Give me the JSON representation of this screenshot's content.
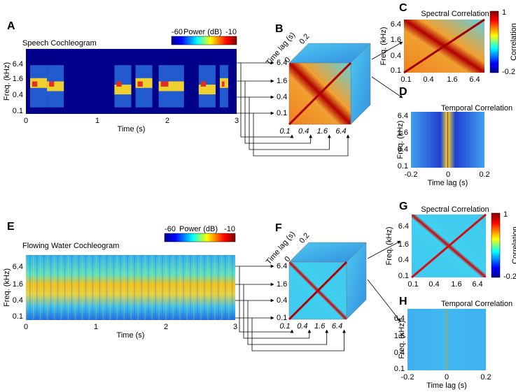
{
  "panels": [
    {
      "letter": "A",
      "title": "Speech Cochleogram",
      "colorbar": {
        "label": "Power (dB)",
        "min": "-60",
        "max": "-10"
      },
      "y_label": "Freq. (kHz)",
      "y_ticks": [
        "6.4",
        "1.6",
        "0.4",
        "0.1"
      ],
      "x_label": "Time (s)",
      "x_ticks": [
        "0",
        "1",
        "2",
        "3"
      ]
    },
    {
      "letter": "B",
      "lag_label": "Time lag (s)",
      "lag_ticks": [
        "0",
        "0.2"
      ],
      "row_ticks": [
        "6.4",
        "1.6",
        "0.4",
        "0.1"
      ],
      "col_ticks": [
        "0.1",
        "0.4",
        "1.6",
        "6.4"
      ]
    },
    {
      "letter": "C",
      "title": "Spectral Correlation",
      "colorbar": {
        "label": "Correlation",
        "max": "1",
        "min": "-0.2"
      },
      "y_label": "Freq. (kHz)",
      "y_ticks": [
        "6.4",
        "1.6",
        "0.4",
        "0.1"
      ],
      "x_ticks": [
        "0.1",
        "0.4",
        "1.6",
        "6.4"
      ]
    },
    {
      "letter": "D",
      "title": "Temporal Correlation",
      "y_label": "Freq. (kHz)",
      "y_ticks": [
        "6.4",
        "1.6",
        "0.4",
        "0.1"
      ],
      "x_label": "Time lag (s)",
      "x_ticks": [
        "-0.2",
        "0",
        "0.2"
      ]
    },
    {
      "letter": "E",
      "title": "Flowing Water Cochleogram",
      "colorbar": {
        "label": "Power (dB)",
        "min": "-60",
        "max": "-10"
      },
      "y_label": "Freq. (kHz)",
      "y_ticks": [
        "6.4",
        "1.6",
        "0.4",
        "0.1"
      ],
      "x_label": "Time (s)",
      "x_ticks": [
        "0",
        "1",
        "2",
        "3"
      ]
    },
    {
      "letter": "F",
      "lag_label": "Time lag (s)",
      "lag_ticks": [
        "0",
        "0.2"
      ],
      "row_ticks": [
        "6.4",
        "1.6",
        "0.4",
        "0.1"
      ],
      "col_ticks": [
        "0.1",
        "0.4",
        "1.6",
        "6.4"
      ]
    },
    {
      "letter": "G",
      "title": "Spectral Correlation",
      "colorbar": {
        "label": "Correlation",
        "max": "1",
        "min": "-0.2"
      },
      "y_label": "Freq. (kHz)",
      "y_ticks": [
        "6.4",
        "1.6",
        "0.4",
        "0.1"
      ],
      "x_ticks": [
        "0.1",
        "0.4",
        "1.6",
        "6.4"
      ]
    },
    {
      "letter": "H",
      "title": "Temporal Correlation",
      "y_label": "Freq. (kHz)",
      "y_ticks": [
        "6.4",
        "1.6",
        "0.4",
        "0.1"
      ],
      "x_label": "Time lag (s)",
      "x_ticks": [
        "-0.2",
        "0",
        "0.2"
      ]
    }
  ]
}
